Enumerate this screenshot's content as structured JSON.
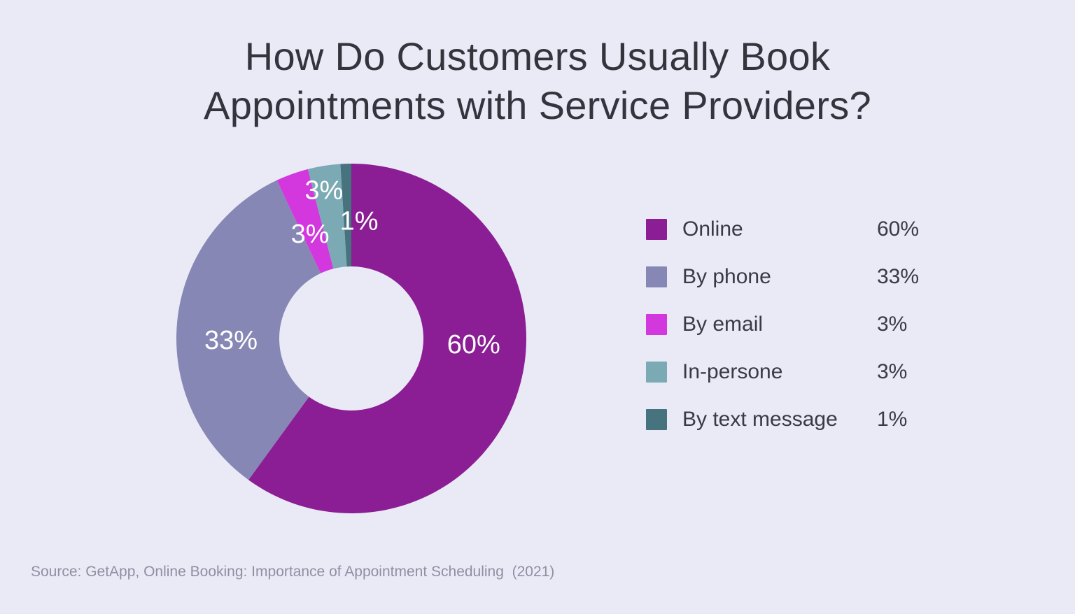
{
  "page": {
    "background_color": "#EAEAF7",
    "title_lines": [
      "How Do Customers Usually Book",
      "Appointments with Service Providers?"
    ],
    "source_note": "Source: GetApp, Online Booking: Importance of Appointment Scheduling  (2021)"
  },
  "chart_data": {
    "type": "pie",
    "subtype": "donut",
    "title": "How Do Customers Usually Book Appointments with Service Providers?",
    "series": [
      {
        "label": "Online",
        "value": 60,
        "value_label": "60%",
        "slice_label": "60%",
        "color": "#8B1E94"
      },
      {
        "label": "By phone",
        "value": 33,
        "value_label": "33%",
        "slice_label": "33%",
        "color": "#8687B5"
      },
      {
        "label": "By email",
        "value": 3,
        "value_label": "3%",
        "slice_label": "3%",
        "color": "#D238DD"
      },
      {
        "label": "In-persone",
        "value": 3,
        "value_label": "3%",
        "slice_label": "3%",
        "color": "#7BAAB4"
      },
      {
        "label": "By text message",
        "value": 1,
        "value_label": "1%",
        "slice_label": "1%",
        "color": "#47737F"
      }
    ],
    "layout": {
      "start_angle_deg": 0,
      "direction": "clockwise",
      "outer_radius": 250,
      "inner_radius": 103,
      "slice_label_color": "#FFFFFF",
      "legend_position": "right",
      "grid": false,
      "label_hints": [
        {
          "angle": 93,
          "radius": 175
        },
        {
          "angle": 269,
          "radius": 172
        },
        {
          "angle": 338.4,
          "radius": 160
        },
        {
          "angle": 349.5,
          "radius": 215
        },
        {
          "angle": 3.8,
          "radius": 168
        }
      ]
    },
    "source": "Source: GetApp, Online Booking: Importance of Appointment Scheduling  (2021)"
  }
}
